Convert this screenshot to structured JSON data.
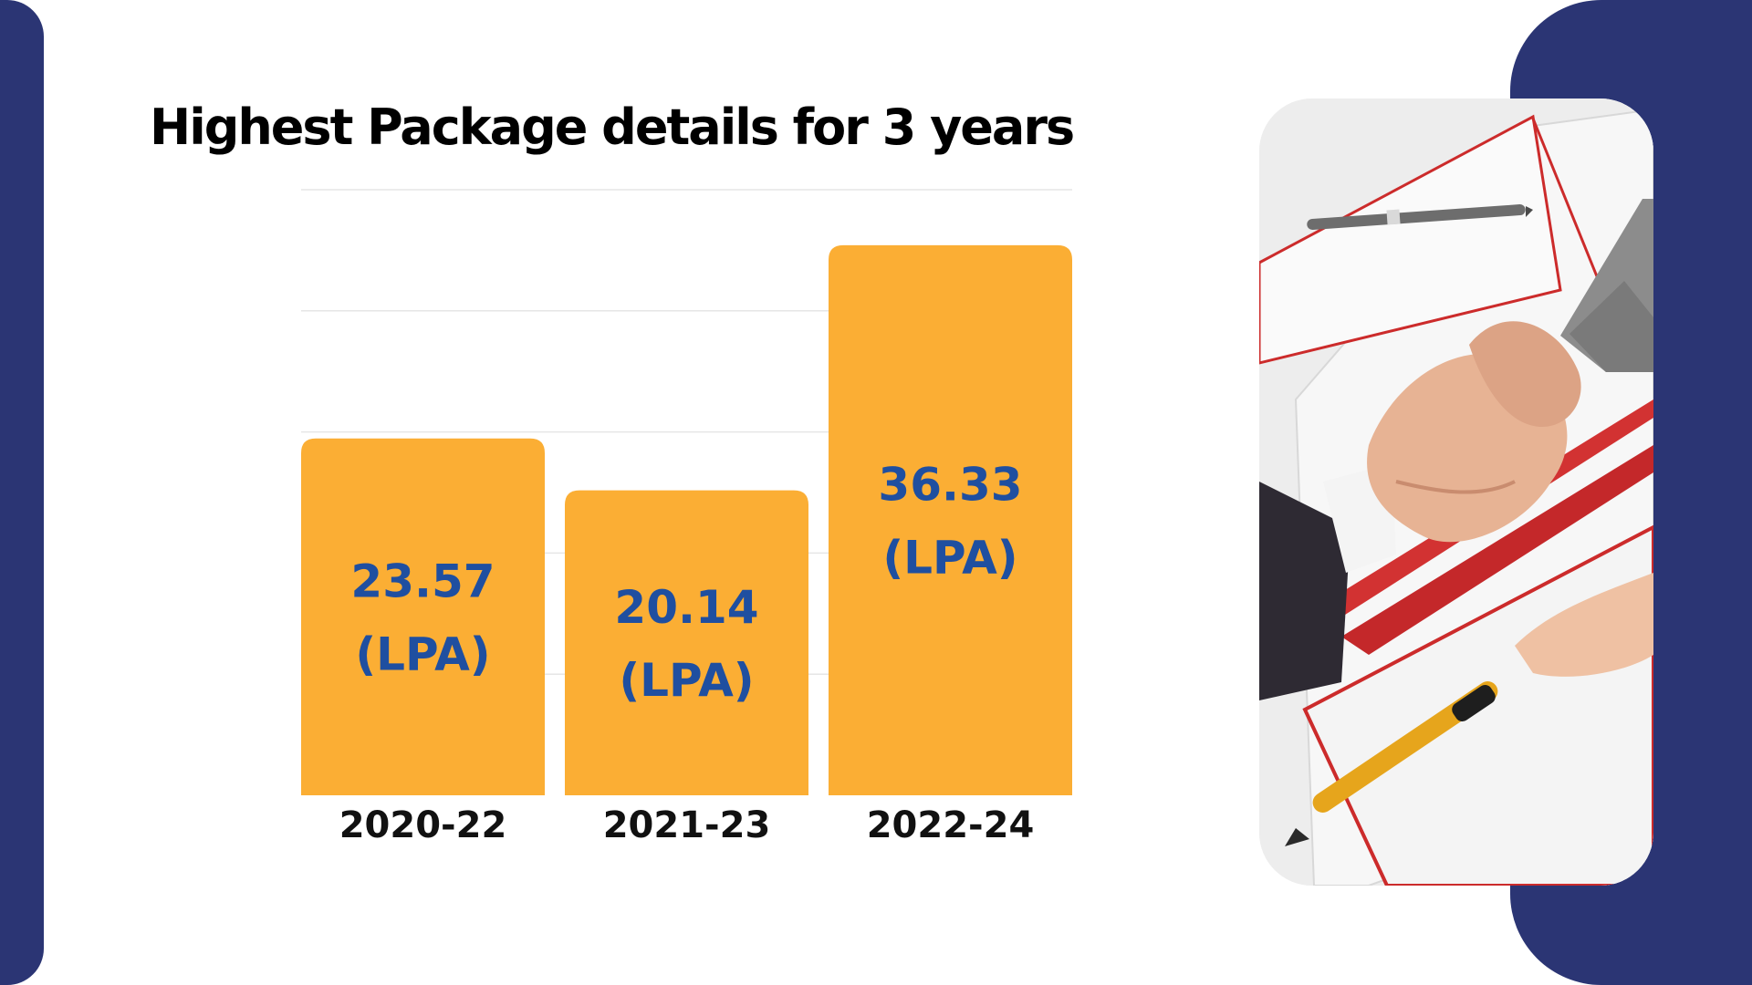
{
  "colors": {
    "navy": "#2b3574",
    "bar": "#fbae34",
    "value_text": "#1f4fa0",
    "gridline": "#e6e6e6"
  },
  "decor": {
    "left_strip": "navy-panel",
    "right_panel": "navy-panel",
    "photo": "handshake-over-documents-photo"
  },
  "chart_data": {
    "type": "bar",
    "title": "Highest Package details for 3 years",
    "categories": [
      "2020-22",
      "2021-23",
      "2022-24"
    ],
    "values": [
      23.57,
      20.14,
      36.33
    ],
    "bar_labels": [
      [
        "23.57",
        "(LPA)"
      ],
      [
        "20.14",
        "(LPA)"
      ],
      [
        "36.33",
        "(LPA)"
      ]
    ],
    "xlabel": "",
    "ylabel": "",
    "ylim": [
      0,
      40
    ],
    "grid": true,
    "legend": "none"
  }
}
